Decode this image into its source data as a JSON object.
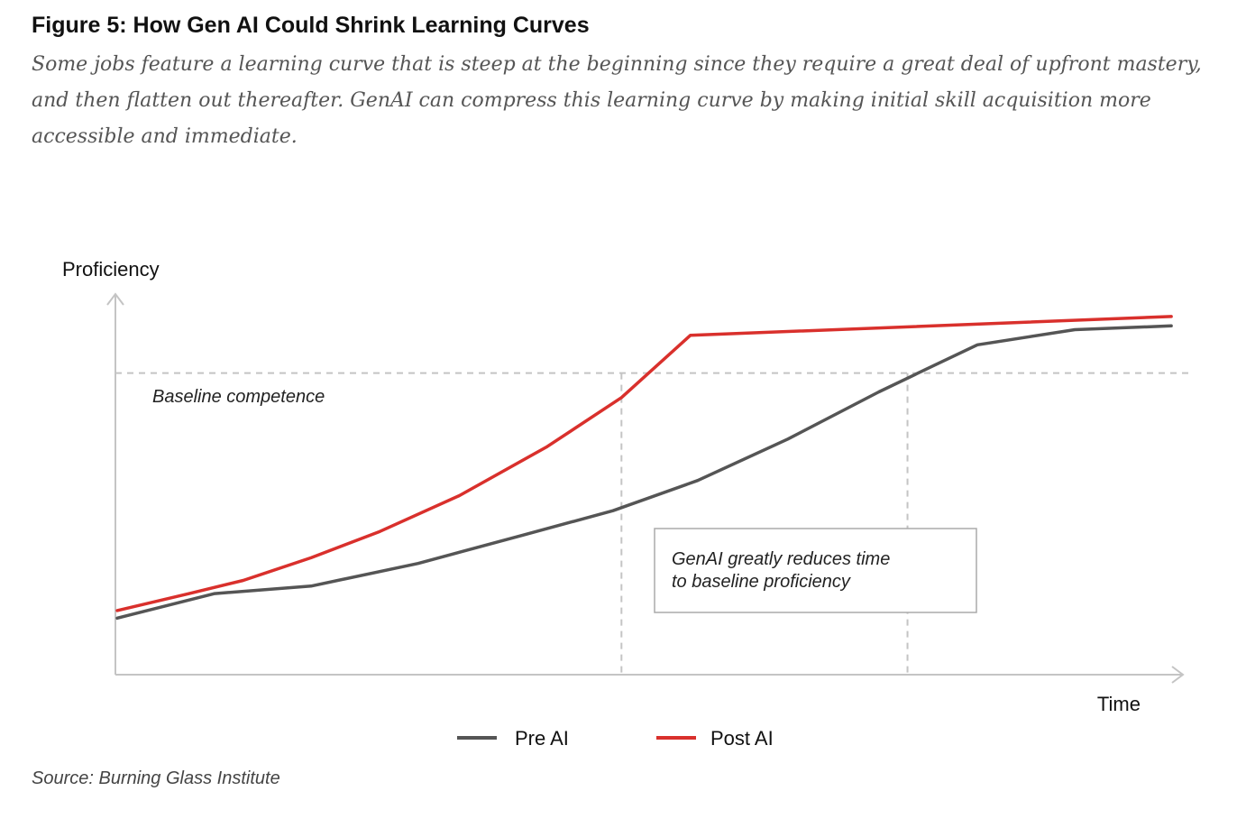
{
  "title": "Figure 5: How Gen AI Could Shrink Learning Curves",
  "subtitle": "Some jobs feature a learning curve that is steep at the beginning since they require a great deal of upfront mastery, and then flatten out thereafter. GenAI can compress this learning curve by making initial skill acquisition more accessible and immediate.",
  "source": "Source: Burning Glass Institute",
  "chart_data": {
    "type": "line",
    "xlabel": "Time",
    "ylabel": "Proficiency",
    "xlim": [
      0,
      100
    ],
    "ylim": [
      0,
      100
    ],
    "baseline": {
      "label": "Baseline competence",
      "value": 80
    },
    "annotation": {
      "lines": [
        "GenAI greatly reduces time",
        "to baseline proficiency"
      ]
    },
    "markers_x": [
      47.6,
      74.6
    ],
    "legend_position": "bottom-center",
    "grid": false,
    "series": [
      {
        "name": "Pre AI",
        "color": "#555555",
        "points": [
          [
            0,
            15
          ],
          [
            9.2,
            21.5
          ],
          [
            18.3,
            23.5
          ],
          [
            28.4,
            29.5
          ],
          [
            38.3,
            37
          ],
          [
            46.8,
            43.5
          ],
          [
            54.8,
            51.5
          ],
          [
            63.3,
            62.5
          ],
          [
            71.9,
            75
          ],
          [
            77.1,
            82
          ],
          [
            81.2,
            87.5
          ],
          [
            90.4,
            91.5
          ],
          [
            99.5,
            92.5
          ]
        ]
      },
      {
        "name": "Post AI",
        "color": "#d9302c",
        "points": [
          [
            0,
            17
          ],
          [
            6.8,
            21.5
          ],
          [
            11.9,
            25
          ],
          [
            18.3,
            31
          ],
          [
            24.8,
            38
          ],
          [
            32.3,
            47.5
          ],
          [
            40.6,
            60.5
          ],
          [
            47.6,
            73.5
          ],
          [
            54.1,
            90
          ],
          [
            99.5,
            95
          ]
        ]
      }
    ]
  }
}
